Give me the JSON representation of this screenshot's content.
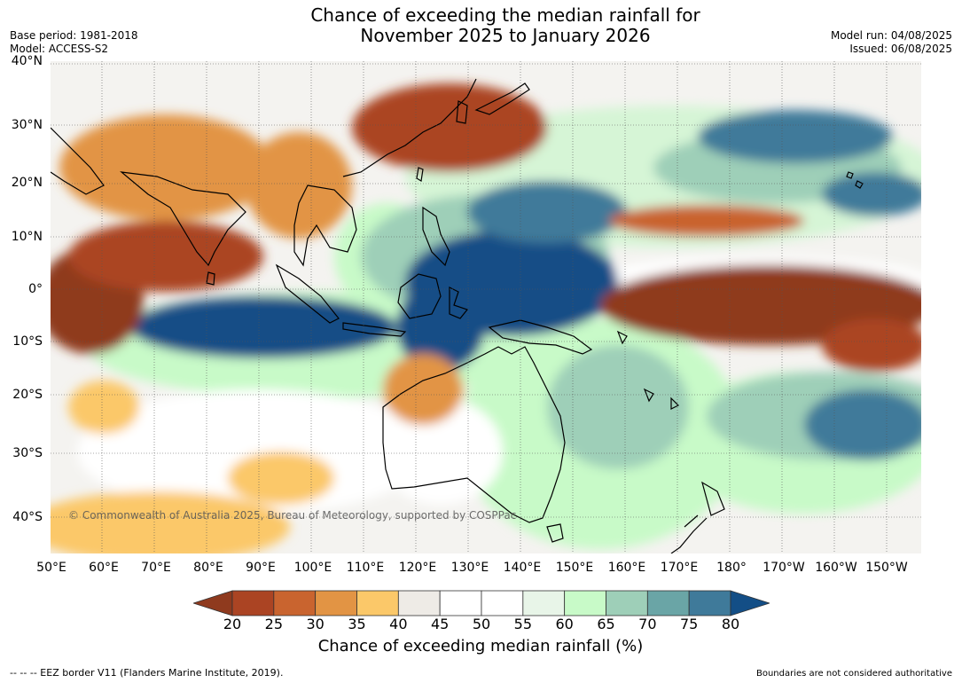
{
  "title": {
    "line1": "Chance of exceeding the median rainfall for",
    "line2": "November 2025 to January 2026"
  },
  "header_left": {
    "base_period": "Base period: 1981-2018",
    "model": "Model: ACCESS-S2"
  },
  "header_right": {
    "model_run": "Model run: 04/08/2025",
    "issued": "Issued: 06/08/2025"
  },
  "lat_labels": [
    "40°N",
    "30°N",
    "20°N",
    "10°N",
    "0°",
    "10°S",
    "20°S",
    "30°S",
    "40°S"
  ],
  "lon_labels": [
    "50°E",
    "60°E",
    "70°E",
    "80°E",
    "90°E",
    "100°E",
    "110°E",
    "120°E",
    "130°E",
    "140°E",
    "150°E",
    "160°E",
    "170°E",
    "180°",
    "170°W",
    "160°W",
    "150°W"
  ],
  "copyright": "© Commonwealth of Australia 2025, Bureau of Meteorology, supported by COSPPac",
  "colorbar": {
    "ticks": [
      "20",
      "25",
      "30",
      "35",
      "40",
      "45",
      "50",
      "55",
      "60",
      "65",
      "70",
      "75",
      "80"
    ],
    "colors": [
      "#8f3a1e",
      "#ab4423",
      "#c9642f",
      "#e29444",
      "#fbc869",
      "#eeebe6",
      "#ffffff",
      "#ffffff",
      "#e8f5e8",
      "#c8fac8",
      "#9ecfb8",
      "#6aa5a6",
      "#3f7a9a",
      "#134e86"
    ],
    "label": "Chance of exceeding median rainfall (%)"
  },
  "footer": {
    "eez": "--  --  -- EEZ border V11 (Flanders Marine Institute, 2019).",
    "note": "Boundaries are not considered authoritative"
  }
}
